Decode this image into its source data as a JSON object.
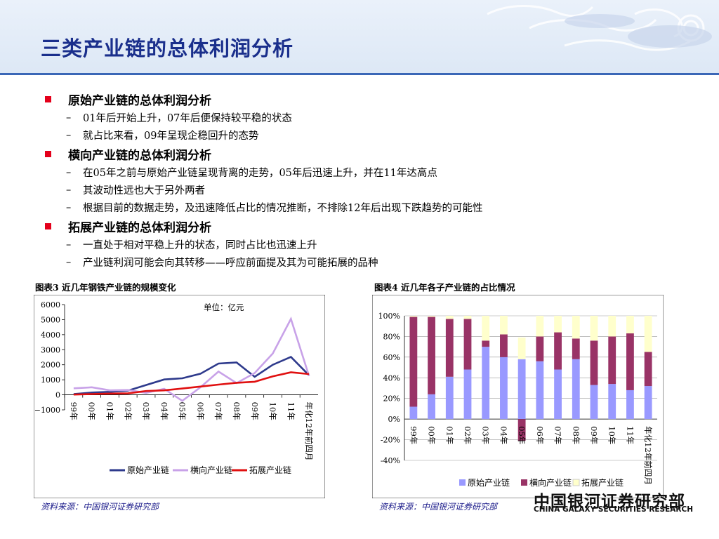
{
  "title": "三类产业链的总体利润分析",
  "sections": [
    {
      "heading": "原始产业链的总体利润分析",
      "items": [
        "01年后开始上升，07年后便保持较平稳的状态",
        "就占比来看，09年呈现企稳回升的态势"
      ]
    },
    {
      "heading": "横向产业链的总体利润分析",
      "items": [
        "在05年之前与原始产业链呈现背离的走势，05年后迅速上升，并在11年达高点",
        "其波动性远也大于另外两者",
        "根据目前的数据走势，及迅速降低占比的情况推断，不排除12年后出现下跌趋势的可能性"
      ]
    },
    {
      "heading": "拓展产业链的总体利润分析",
      "items": [
        "一直处于相对平稳上升的状态，同时占比也迅速上升",
        "产业链利润可能会向其转移——呼应前面提及其为可能拓展的品种"
      ]
    }
  ],
  "chart1_caption": "图表3 近几年钢铁产业链的规模变化",
  "chart2_caption": "图表4 近几年各子产业链的占比情况",
  "source_left": "资料来源：中国银河证券研究部",
  "source_right": "资料来源：中国银河证券研究部",
  "logo": {
    "cn": "中国银河证券研究部",
    "en": "CHINA GALAXY SECURITIES RESEARCH"
  },
  "colors": {
    "title": "#1a2f8c",
    "bullet": "#e4001b",
    "s1_line": "#2e3a8c",
    "s2_line": "#c8a2e8",
    "s3_line": "#e01010",
    "bar1": "#9999ff",
    "bar2": "#993366",
    "bar3": "#ffffcc"
  },
  "chart_data": [
    {
      "type": "line",
      "unit_label": "单位：亿元",
      "categories": [
        "99年",
        "00年",
        "01年",
        "02年",
        "03年",
        "04年",
        "05年",
        "06年",
        "07年",
        "08年",
        "09年",
        "10年",
        "11年",
        "年化12年前四月"
      ],
      "ylim": [
        -1000,
        6000
      ],
      "yticks": [
        -1000,
        0,
        1000,
        2000,
        3000,
        4000,
        5000,
        6000
      ],
      "legend_position": "bottom",
      "series": [
        {
          "name": "原始产业链",
          "values": [
            50,
            150,
            200,
            280,
            650,
            1020,
            1100,
            1400,
            2080,
            2150,
            1200,
            2000,
            2520,
            1300
          ]
        },
        {
          "name": "横向产业链",
          "values": [
            430,
            500,
            300,
            320,
            130,
            400,
            -400,
            500,
            1550,
            780,
            1450,
            2750,
            5050,
            1250
          ]
        },
        {
          "name": "拓展产业链",
          "values": [
            20,
            50,
            80,
            100,
            250,
            300,
            420,
            550,
            680,
            800,
            870,
            1230,
            1500,
            1380
          ]
        }
      ]
    },
    {
      "type": "bar",
      "stacked": true,
      "categories": [
        "99年",
        "00年",
        "01年",
        "02年",
        "03年",
        "04年",
        "05年",
        "06年",
        "07年",
        "08年",
        "09年",
        "10年",
        "11年",
        "年化12年前四月"
      ],
      "ylim": [
        -40,
        100
      ],
      "yticks": [
        "-40%",
        "-20%",
        "0%",
        "20%",
        "40%",
        "60%",
        "80%",
        "100%"
      ],
      "legend_position": "bottom",
      "series": [
        {
          "name": "原始产业链",
          "values": [
            12,
            24,
            41,
            48,
            70,
            60,
            58,
            56,
            48,
            58,
            33,
            34,
            28,
            32
          ]
        },
        {
          "name": "横向产业链",
          "values": [
            87,
            75,
            56,
            49,
            6,
            22,
            -21,
            24,
            36,
            20,
            43,
            46,
            55,
            33
          ]
        },
        {
          "name": "拓展产业链",
          "values": [
            1,
            1,
            3,
            3,
            24,
            18,
            21,
            20,
            16,
            22,
            24,
            20,
            17,
            35
          ]
        }
      ]
    }
  ]
}
